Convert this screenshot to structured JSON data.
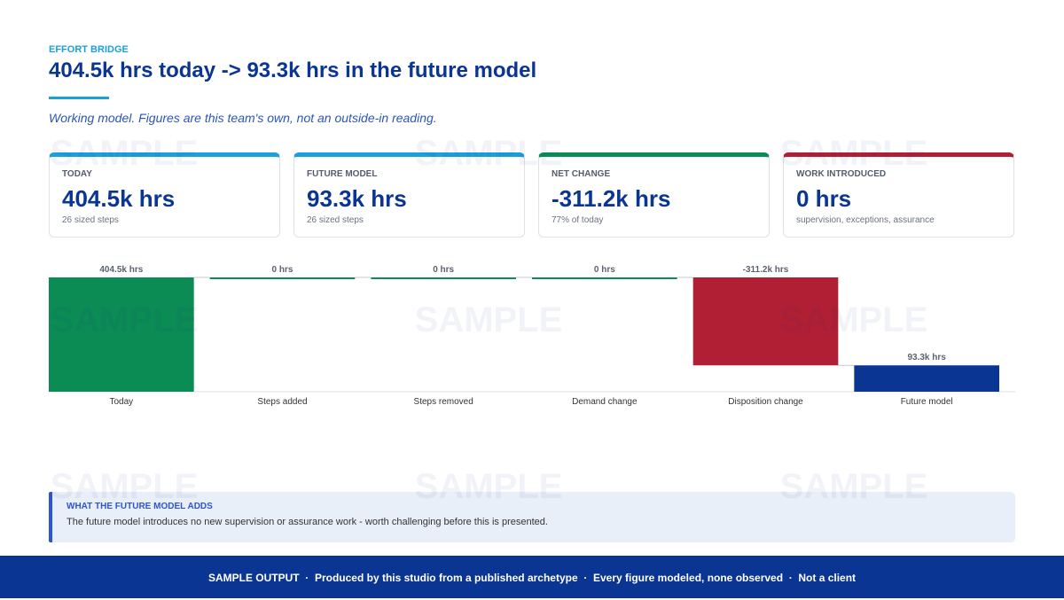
{
  "header": {
    "kicker": "EFFORT BRIDGE",
    "title": "404.5k hrs today -> 93.3k hrs in the future model",
    "subtitle": "Working model. Figures are this team's own, not an outside-in reading."
  },
  "cards": [
    {
      "label": "TODAY",
      "value": "404.5k hrs",
      "note": "26 sized steps",
      "color": "#1ba0dc"
    },
    {
      "label": "FUTURE MODEL",
      "value": "93.3k hrs",
      "note": "26 sized steps",
      "color": "#1ba0dc"
    },
    {
      "label": "NET CHANGE",
      "value": "-311.2k hrs",
      "note": "77% of today",
      "color": "#0b8c55"
    },
    {
      "label": "WORK INTRODUCED",
      "value": "0 hrs",
      "note": "supervision, exceptions, assurance",
      "color": "#b01f33"
    }
  ],
  "chart_data": {
    "type": "waterfall",
    "categories": [
      "Today",
      "Steps added",
      "Steps removed",
      "Demand change",
      "Disposition change",
      "Future model"
    ],
    "values": [
      404.5,
      0,
      0,
      0,
      -311.2,
      93.3
    ],
    "value_labels": [
      "404.5k hrs",
      "0 hrs",
      "0 hrs",
      "0 hrs",
      "-311.2k hrs",
      "93.3k hrs"
    ],
    "colors": [
      "#0b8c55",
      "#0b8c55",
      "#0b8c55",
      "#0b8c55",
      "#b01f33",
      "#0a3592"
    ]
  },
  "callout": {
    "title": "WHAT THE FUTURE MODEL ADDS",
    "text": "The future model introduces no new supervision or assurance work - worth challenging before this is presented."
  },
  "footer": {
    "text": "SAMPLE OUTPUT  ·  Produced by this studio from a published archetype  ·  Every figure modeled, none observed  ·  Not a client"
  },
  "watermark": "SAMPLE"
}
